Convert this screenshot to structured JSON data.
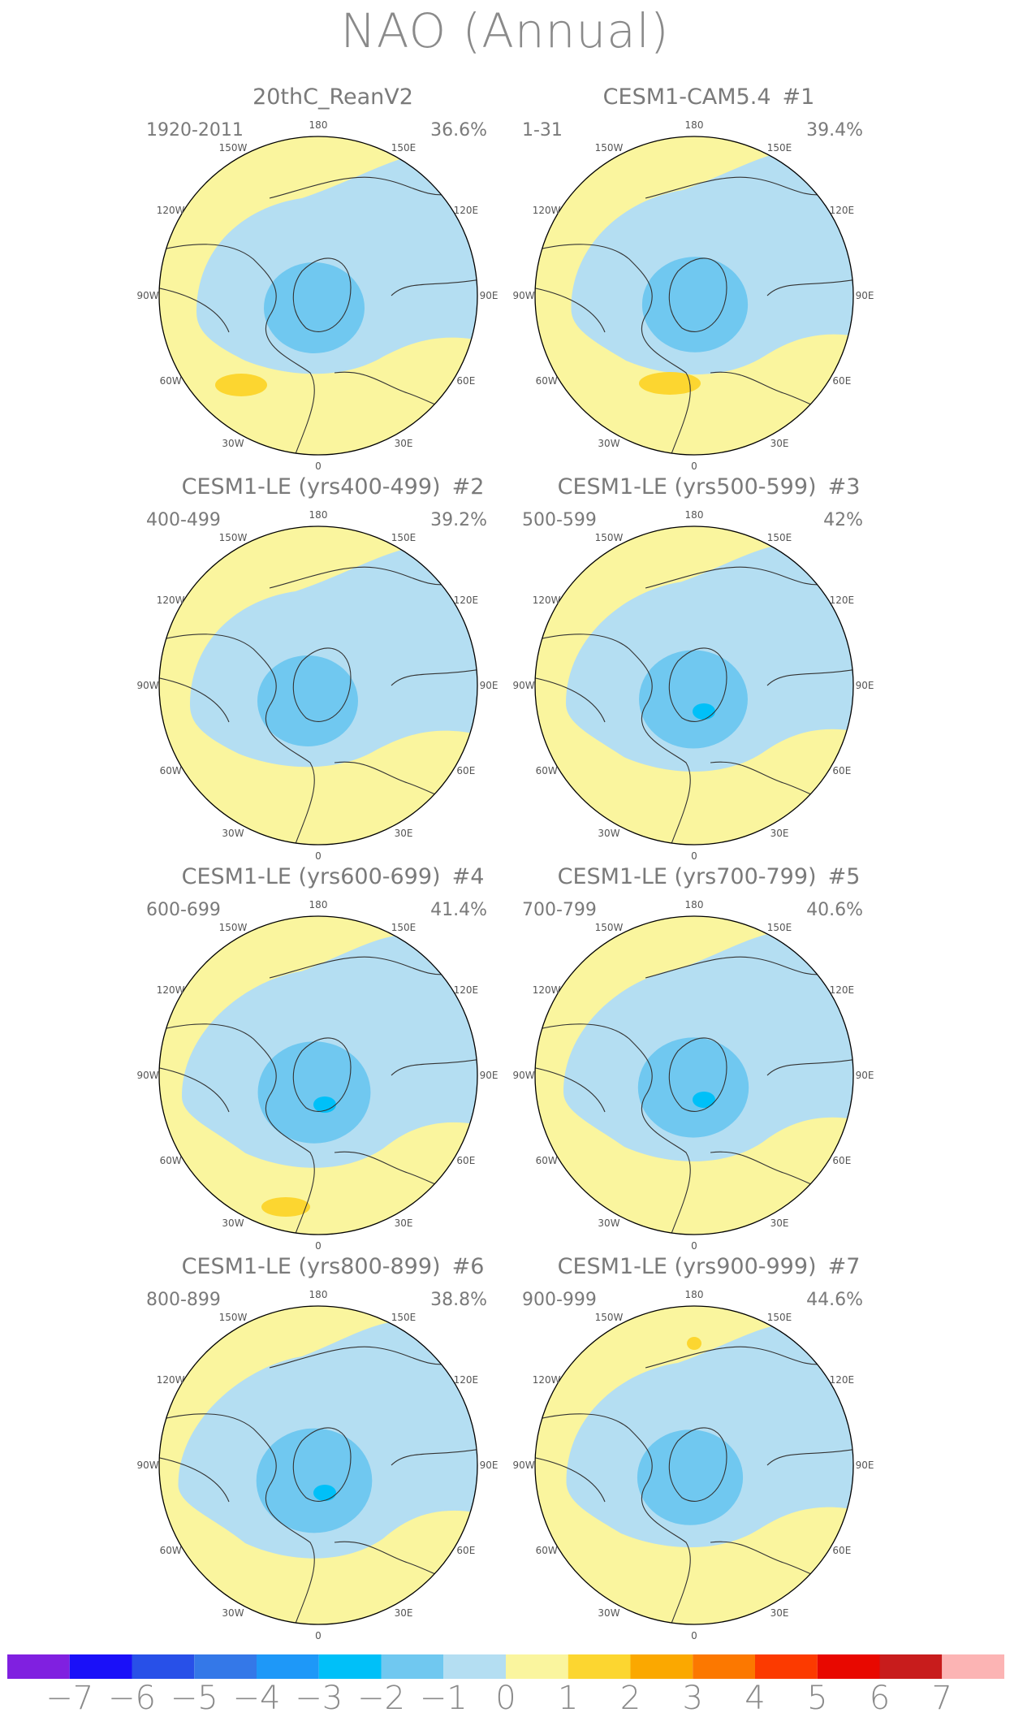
{
  "title": "NAO (Annual)",
  "longitude_labels": [
    "180",
    "150E",
    "120E",
    "90E",
    "60E",
    "30E",
    "0",
    "30W",
    "60W",
    "90W",
    "120W",
    "150W"
  ],
  "panels": [
    {
      "title": "20thC_ReanV2",
      "tag": "",
      "period": "1920-2011",
      "variance": "36.6%"
    },
    {
      "title": "CESM1-CAM5.4",
      "tag": "#1",
      "period": "1-31",
      "variance": "39.4%"
    },
    {
      "title": "CESM1-LE (yrs400-499)",
      "tag": "#2",
      "period": "400-499",
      "variance": "39.2%"
    },
    {
      "title": "CESM1-LE (yrs500-599)",
      "tag": "#3",
      "period": "500-599",
      "variance": "42%"
    },
    {
      "title": "CESM1-LE (yrs600-699)",
      "tag": "#4",
      "period": "600-699",
      "variance": "41.4%"
    },
    {
      "title": "CESM1-LE (yrs700-799)",
      "tag": "#5",
      "period": "700-799",
      "variance": "40.6%"
    },
    {
      "title": "CESM1-LE (yrs800-899)",
      "tag": "#6",
      "period": "800-899",
      "variance": "38.8%"
    },
    {
      "title": "CESM1-LE (yrs900-999)",
      "tag": "#7",
      "period": "900-999",
      "variance": "44.6%"
    }
  ],
  "colorbar": {
    "labels": [
      "−7",
      "−6",
      "−5",
      "−4",
      "−3",
      "−2",
      "−1",
      "0",
      "1",
      "2",
      "3",
      "4",
      "5",
      "6",
      "7"
    ],
    "colors": [
      "#8020e0",
      "#1a10f8",
      "#2850e8",
      "#3478e8",
      "#1e98f8",
      "#00c0f8",
      "#70c8f0",
      "#b4def2",
      "#faf59e",
      "#fcd630",
      "#fba800",
      "#fc7800",
      "#fc3a00",
      "#e80800",
      "#c81c1c",
      "#fcb4b4"
    ]
  },
  "map_colors": {
    "land": "#faf59e",
    "negative_1": "#b4def2",
    "negative_2": "#70c8f0",
    "negative_3": "#00c0f8",
    "positive_1": "#fcd630",
    "coast": "#333333"
  }
}
